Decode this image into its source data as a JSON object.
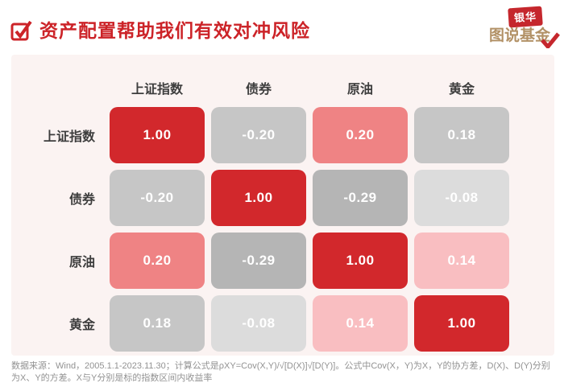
{
  "title": "资产配置帮助我们有效对冲风险",
  "logo": {
    "brand": "银华",
    "subtitle": "图说基金"
  },
  "colors": {
    "title_red": "#cc2328",
    "strong_red": "#d2282c",
    "salmon": "#ef8384",
    "light_pink": "#f9bec1",
    "gray_medium": "#c6c6c6",
    "gray_dark": "#b5b5b5",
    "gray_light": "#dcdcdc",
    "panel_bg": "#fbf3f2"
  },
  "chart_data": {
    "type": "heatmap",
    "title": "资产配置帮助我们有效对冲风险",
    "x_labels": [
      "上证指数",
      "债券",
      "原油",
      "黄金"
    ],
    "y_labels": [
      "上证指数",
      "债券",
      "原油",
      "黄金"
    ],
    "matrix": [
      [
        1.0,
        -0.2,
        0.2,
        0.18
      ],
      [
        -0.2,
        1.0,
        -0.29,
        -0.08
      ],
      [
        0.2,
        -0.29,
        1.0,
        0.14
      ],
      [
        0.18,
        -0.08,
        0.14,
        1.0
      ]
    ],
    "value_format": "two_decimals",
    "legend": "none",
    "grid": "off",
    "color_note": "strong positive = red, weak positive = pink/salmon or gray, negative = gray shades"
  },
  "matrix": {
    "col_headers": [
      "上证指数",
      "债券",
      "原油",
      "黄金"
    ],
    "rows": [
      {
        "label": "上证指数",
        "cells": [
          {
            "text": "1.00",
            "bg": "#d2282c"
          },
          {
            "text": "-0.20",
            "bg": "#c6c6c6"
          },
          {
            "text": "0.20",
            "bg": "#ef8384"
          },
          {
            "text": "0.18",
            "bg": "#c6c6c6"
          }
        ]
      },
      {
        "label": "债券",
        "cells": [
          {
            "text": "-0.20",
            "bg": "#c6c6c6"
          },
          {
            "text": "1.00",
            "bg": "#d2282c"
          },
          {
            "text": "-0.29",
            "bg": "#b5b5b5"
          },
          {
            "text": "-0.08",
            "bg": "#dcdcdc"
          }
        ]
      },
      {
        "label": "原油",
        "cells": [
          {
            "text": "0.20",
            "bg": "#ef8384"
          },
          {
            "text": "-0.29",
            "bg": "#b5b5b5"
          },
          {
            "text": "1.00",
            "bg": "#d2282c"
          },
          {
            "text": "0.14",
            "bg": "#f9bec1"
          }
        ]
      },
      {
        "label": "黄金",
        "cells": [
          {
            "text": "0.18",
            "bg": "#c6c6c6"
          },
          {
            "text": "-0.08",
            "bg": "#dcdcdc"
          },
          {
            "text": "0.14",
            "bg": "#f9bec1"
          },
          {
            "text": "1.00",
            "bg": "#d2282c"
          }
        ]
      }
    ]
  },
  "footnote": "数据来源：Wind，2005.1.1-2023.11.30；计算公式是ρXY=Cov(X,Y)/√[D(X)]√[D(Y)]。公式中Cov(X，Y)为X，Y的协方差，D(X)、D(Y)分别为X、Y的方差。X与Y分别是标的指数区间内收益率"
}
